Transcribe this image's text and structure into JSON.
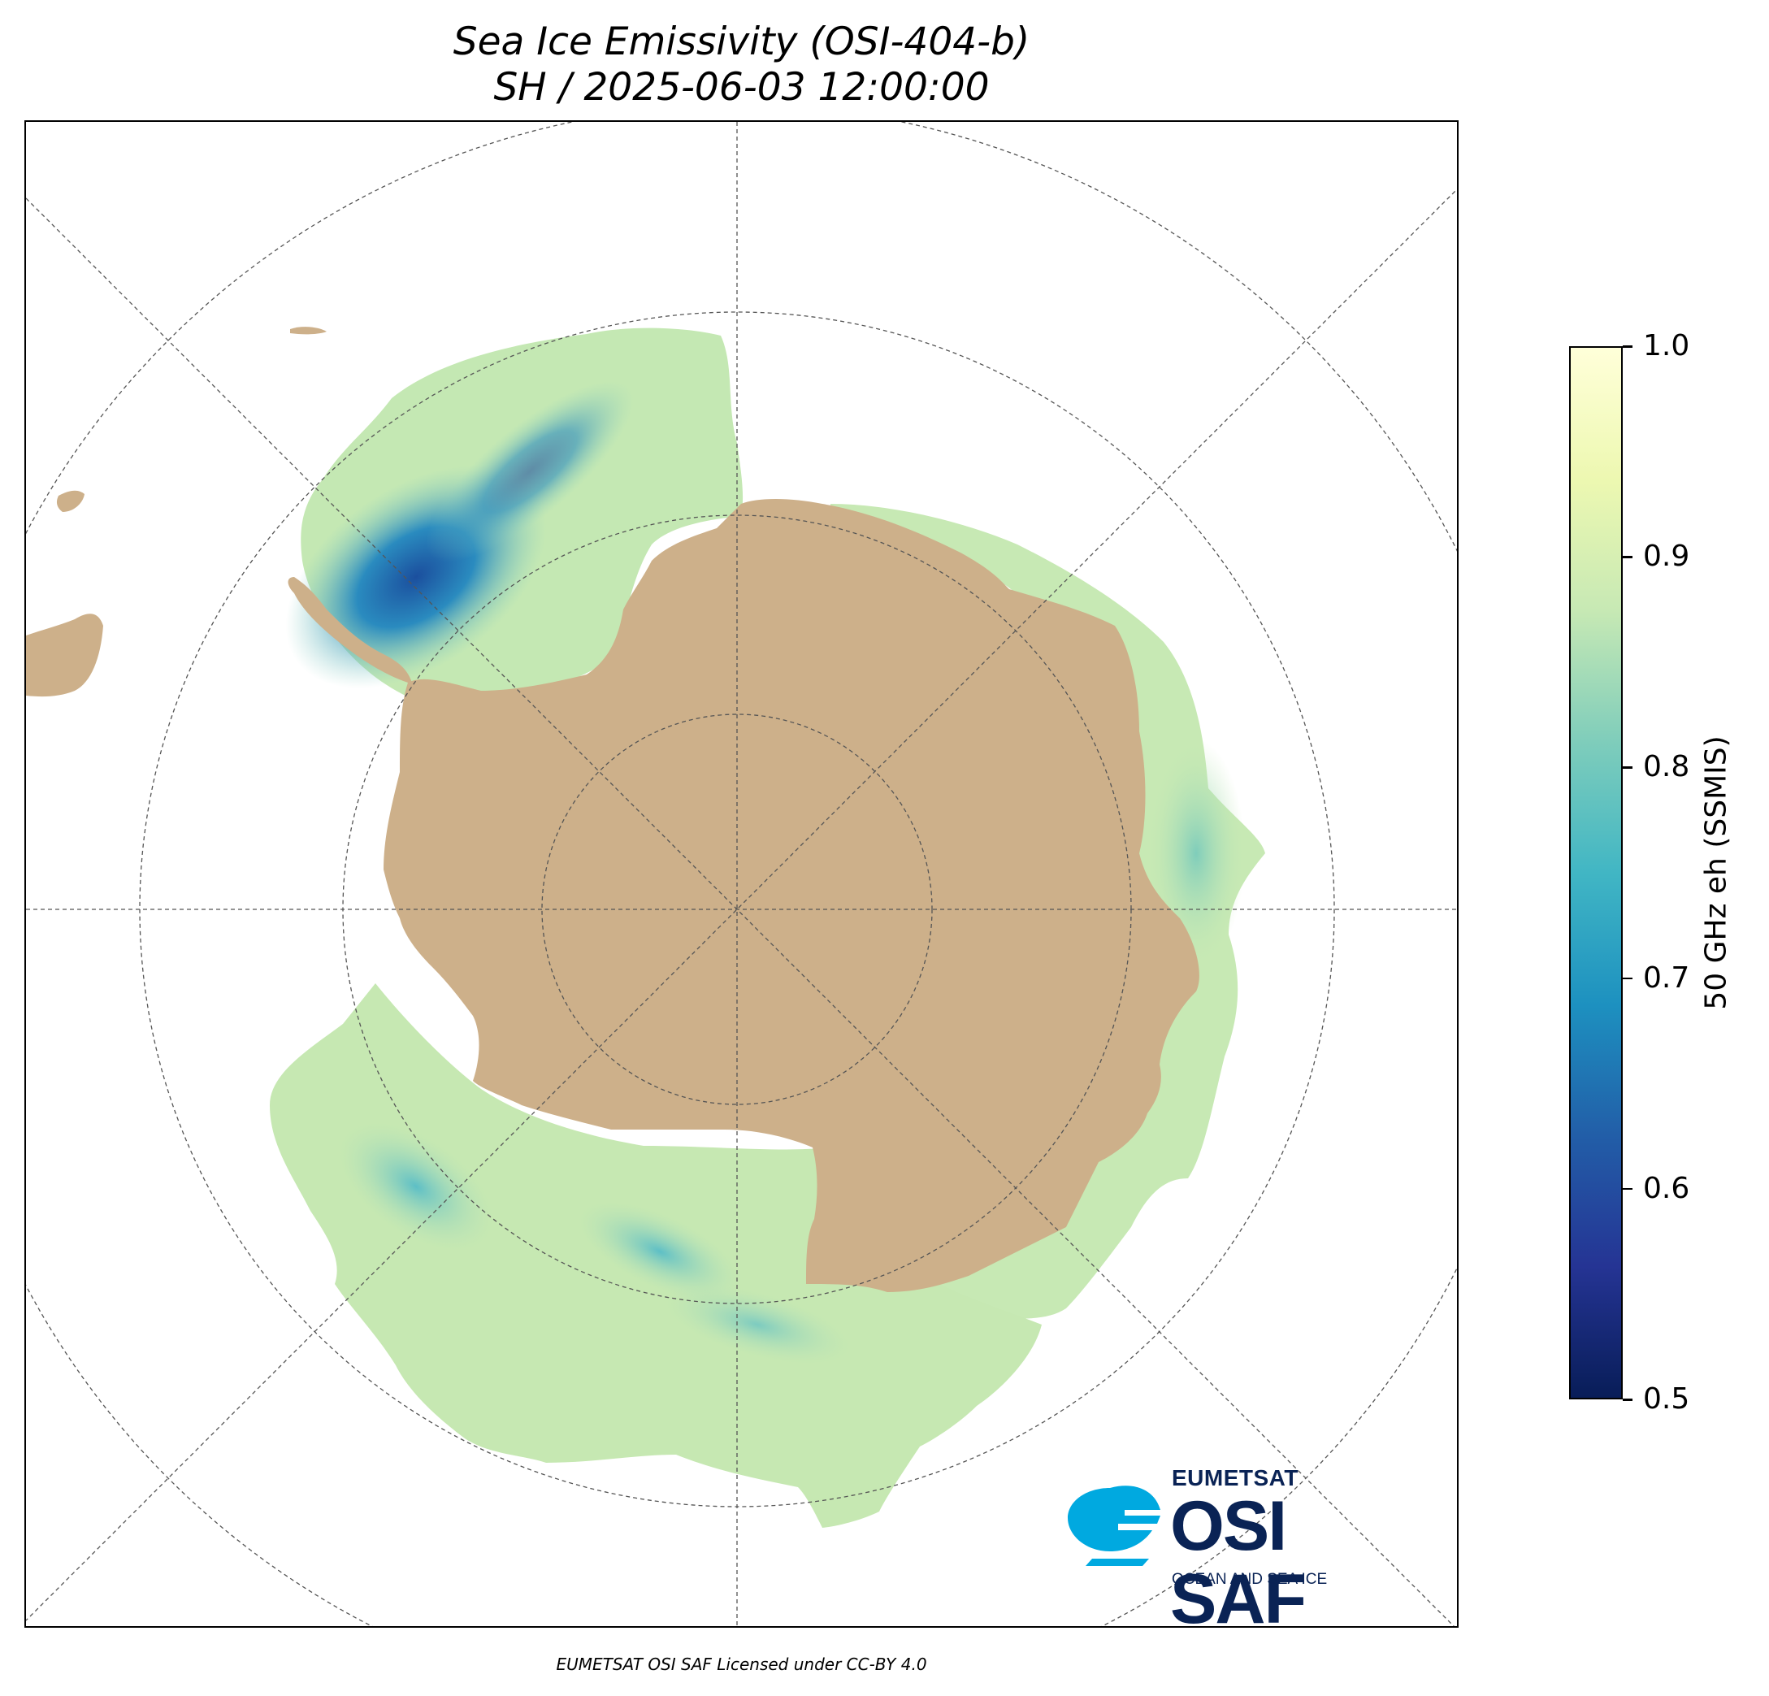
{
  "title": {
    "line1": "Sea Ice Emissivity (OSI-404-b)",
    "line2": "SH / 2025-06-03 12:00:00"
  },
  "colorbar": {
    "label": "50 GHz eh (SSMIS)",
    "min": 0.5,
    "max": 1.0,
    "ticks": [
      "1.0",
      "0.9",
      "0.8",
      "0.7",
      "0.6",
      "0.5"
    ],
    "colormap": "YlGnBu_r",
    "stops": [
      "#081d58",
      "#253494",
      "#225ea8",
      "#1d91c0",
      "#41b6c4",
      "#7fcdbb",
      "#c7e9b4",
      "#edf8b1",
      "#ffffd9"
    ]
  },
  "map": {
    "projection": "south-polar-stereographic",
    "land_color": "#cdb08a",
    "graticule": "on",
    "graticule_color": "#555555"
  },
  "logo": {
    "line1": "EUMETSAT",
    "line2": "OSI SAF",
    "line3": "OCEAN AND SEA ICE",
    "color_dark": "#0a2355",
    "color_accent": "#00a9e0"
  },
  "footer": "EUMETSAT OSI SAF Licensed under CC-BY 4.0"
}
